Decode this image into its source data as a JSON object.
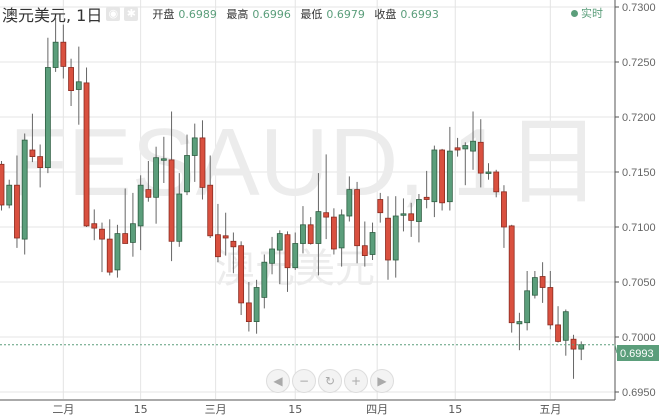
{
  "header": {
    "title": "澳元美元, 1日",
    "ohlc": [
      {
        "label": "开盘",
        "value": "0.6989"
      },
      {
        "label": "最高",
        "value": "0.6996"
      },
      {
        "label": "最低",
        "value": "0.6979"
      },
      {
        "label": "收盘",
        "value": "0.6993"
      }
    ],
    "live_label": "实时",
    "icons": [
      "eye-icon",
      "gear-icon"
    ]
  },
  "watermark": {
    "main": "FESAUD, 1日",
    "sub": "澳元美元"
  },
  "nav_buttons": [
    {
      "name": "scroll-left",
      "glyph": "◀"
    },
    {
      "name": "zoom-out",
      "glyph": "−"
    },
    {
      "name": "reset",
      "glyph": "↻"
    },
    {
      "name": "zoom-in",
      "glyph": "+"
    },
    {
      "name": "scroll-right",
      "glyph": "▶"
    }
  ],
  "colors": {
    "up": "#5b9e7b",
    "up_border": "#2f5f43",
    "down": "#d9503f",
    "down_border": "#8a2b20",
    "grid": "#e4e4e4",
    "price_line": "#5b9e7b"
  },
  "chart_data": {
    "type": "candlestick",
    "ylim": [
      0.695,
      0.73
    ],
    "y_ticks": [
      "0.7300",
      "0.7250",
      "0.7200",
      "0.7150",
      "0.7100",
      "0.7050",
      "0.7000",
      "0.6950"
    ],
    "x_ticks": [
      {
        "label": "二月",
        "at_candle": 8
      },
      {
        "label": "15",
        "at_candle": 18
      },
      {
        "label": "三月",
        "at_candle": 27.7
      },
      {
        "label": "15",
        "at_candle": 38
      },
      {
        "label": "四月",
        "at_candle": 48.6
      },
      {
        "label": "15",
        "at_candle": 58.7
      },
      {
        "label": "五月",
        "at_candle": 71
      }
    ],
    "last_price": "0.6993",
    "grid": true,
    "candles": [
      [
        0.7157,
        0.716,
        0.7115,
        0.712
      ],
      [
        0.712,
        0.7143,
        0.7117,
        0.7138
      ],
      [
        0.7138,
        0.7165,
        0.7081,
        0.709
      ],
      [
        0.7089,
        0.7185,
        0.7075,
        0.7179
      ],
      [
        0.717,
        0.7203,
        0.7159,
        0.7164
      ],
      [
        0.7164,
        0.7175,
        0.7136,
        0.7154
      ],
      [
        0.7154,
        0.7272,
        0.7149,
        0.7245
      ],
      [
        0.7245,
        0.729,
        0.7241,
        0.7268
      ],
      [
        0.7268,
        0.7284,
        0.7235,
        0.7246
      ],
      [
        0.7245,
        0.7253,
        0.721,
        0.7224
      ],
      [
        0.7225,
        0.7264,
        0.7193,
        0.7232
      ],
      [
        0.7231,
        0.7245,
        0.71,
        0.7101
      ],
      [
        0.7103,
        0.7116,
        0.7088,
        0.7099
      ],
      [
        0.7098,
        0.7104,
        0.7059,
        0.7089
      ],
      [
        0.7089,
        0.7107,
        0.7056,
        0.7059
      ],
      [
        0.7061,
        0.7102,
        0.7054,
        0.7094
      ],
      [
        0.7094,
        0.7135,
        0.7085,
        0.7085
      ],
      [
        0.7086,
        0.7131,
        0.7073,
        0.7103
      ],
      [
        0.7101,
        0.7147,
        0.7079,
        0.7138
      ],
      [
        0.7134,
        0.716,
        0.7123,
        0.7127
      ],
      [
        0.7127,
        0.7173,
        0.7103,
        0.7163
      ],
      [
        0.7161,
        0.7182,
        0.714,
        0.7162
      ],
      [
        0.7161,
        0.7205,
        0.7069,
        0.7087
      ],
      [
        0.7087,
        0.7149,
        0.7082,
        0.713
      ],
      [
        0.7132,
        0.7184,
        0.7129,
        0.7165
      ],
      [
        0.7165,
        0.7194,
        0.7141,
        0.7181
      ],
      [
        0.7181,
        0.7197,
        0.7125,
        0.7136
      ],
      [
        0.7138,
        0.7165,
        0.709,
        0.7092
      ],
      [
        0.7093,
        0.7121,
        0.7068,
        0.7073
      ],
      [
        0.7092,
        0.7113,
        0.7074,
        0.709
      ],
      [
        0.7087,
        0.7095,
        0.7058,
        0.7082
      ],
      [
        0.7083,
        0.7087,
        0.702,
        0.7031
      ],
      [
        0.7031,
        0.705,
        0.7005,
        0.7014
      ],
      [
        0.7014,
        0.7052,
        0.7003,
        0.7045
      ],
      [
        0.7036,
        0.7075,
        0.7026,
        0.7068
      ],
      [
        0.7067,
        0.7091,
        0.7057,
        0.708
      ],
      [
        0.7079,
        0.7097,
        0.7048,
        0.7094
      ],
      [
        0.7093,
        0.7096,
        0.7041,
        0.7063
      ],
      [
        0.7063,
        0.7095,
        0.7061,
        0.7085
      ],
      [
        0.7085,
        0.7119,
        0.7076,
        0.7102
      ],
      [
        0.7102,
        0.7109,
        0.7084,
        0.7085
      ],
      [
        0.7085,
        0.7149,
        0.7056,
        0.7114
      ],
      [
        0.7113,
        0.7166,
        0.7089,
        0.7109
      ],
      [
        0.7109,
        0.7117,
        0.7075,
        0.708
      ],
      [
        0.7081,
        0.7116,
        0.7064,
        0.7111
      ],
      [
        0.711,
        0.7146,
        0.7105,
        0.7134
      ],
      [
        0.7134,
        0.7141,
        0.7067,
        0.7083
      ],
      [
        0.7083,
        0.7105,
        0.7064,
        0.7074
      ],
      [
        0.7075,
        0.7104,
        0.707,
        0.7095
      ],
      [
        0.7125,
        0.7131,
        0.7104,
        0.7113
      ],
      [
        0.7108,
        0.7128,
        0.7052,
        0.707
      ],
      [
        0.707,
        0.7128,
        0.7054,
        0.711
      ],
      [
        0.7111,
        0.7126,
        0.7096,
        0.7112
      ],
      [
        0.7112,
        0.7122,
        0.7091,
        0.7106
      ],
      [
        0.7105,
        0.713,
        0.7086,
        0.7125
      ],
      [
        0.7127,
        0.7151,
        0.7117,
        0.7125
      ],
      [
        0.7123,
        0.7174,
        0.7109,
        0.717
      ],
      [
        0.717,
        0.7171,
        0.7115,
        0.7122
      ],
      [
        0.7123,
        0.7191,
        0.7115,
        0.7169
      ],
      [
        0.7172,
        0.7181,
        0.7164,
        0.717
      ],
      [
        0.7171,
        0.7177,
        0.7138,
        0.7174
      ],
      [
        0.7169,
        0.7205,
        0.7152,
        0.7178
      ],
      [
        0.7177,
        0.7198,
        0.7136,
        0.7149
      ],
      [
        0.7149,
        0.7158,
        0.7143,
        0.715
      ],
      [
        0.715,
        0.7152,
        0.7127,
        0.7132
      ],
      [
        0.7132,
        0.7138,
        0.7081,
        0.71
      ],
      [
        0.7101,
        0.7102,
        0.7004,
        0.7013
      ],
      [
        0.7012,
        0.7022,
        0.6988,
        0.7014
      ],
      [
        0.7013,
        0.706,
        0.7006,
        0.7042
      ],
      [
        0.7038,
        0.706,
        0.7035,
        0.7054
      ],
      [
        0.7055,
        0.7068,
        0.7031,
        0.7045
      ],
      [
        0.7045,
        0.706,
        0.7007,
        0.7011
      ],
      [
        0.7011,
        0.7028,
        0.6995,
        0.6996
      ],
      [
        0.6997,
        0.7025,
        0.6983,
        0.7023
      ],
      [
        0.6998,
        0.7002,
        0.6962,
        0.6989
      ],
      [
        0.6989,
        0.6996,
        0.6979,
        0.6993
      ]
    ]
  }
}
